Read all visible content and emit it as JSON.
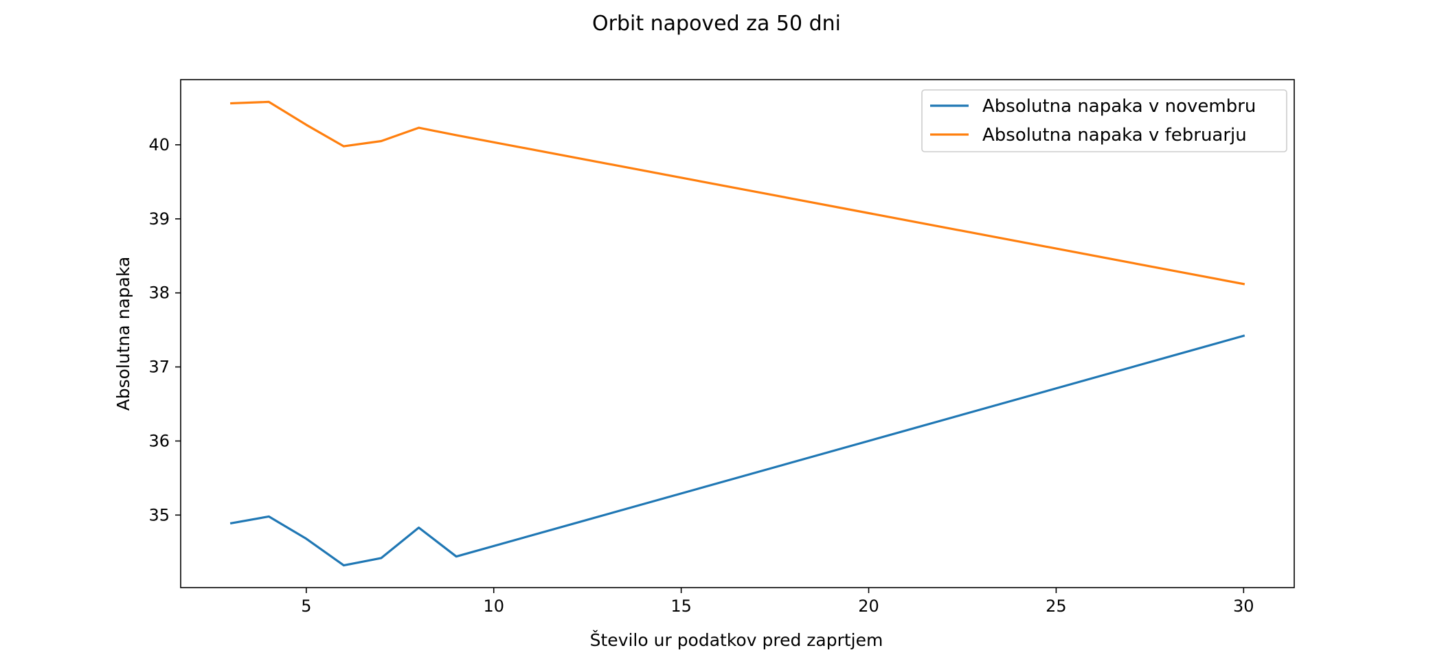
{
  "chart_data": {
    "type": "line",
    "title": "Orbit napoved za 50 dni",
    "xlabel": "Število ur podatkov pred zaprtjem",
    "ylabel": "Absolutna napaka",
    "x": [
      3,
      4,
      5,
      6,
      7,
      8,
      9,
      30
    ],
    "xlim": [
      1.65,
      31.35
    ],
    "ylim": [
      34.02,
      40.88
    ],
    "xticks": [
      5,
      10,
      15,
      20,
      25,
      30
    ],
    "yticks": [
      35,
      36,
      37,
      38,
      39,
      40
    ],
    "grid": false,
    "legend_position": "upper-right",
    "series": [
      {
        "name": "Absolutna napaka v novembru",
        "color": "#1f77b4",
        "values": [
          34.89,
          34.98,
          34.68,
          34.32,
          34.42,
          34.83,
          34.44,
          37.42
        ]
      },
      {
        "name": "Absolutna napaka v februarju",
        "color": "#ff7f0e",
        "values": [
          40.56,
          40.58,
          40.27,
          39.98,
          40.05,
          40.23,
          40.13,
          38.12
        ]
      }
    ]
  }
}
